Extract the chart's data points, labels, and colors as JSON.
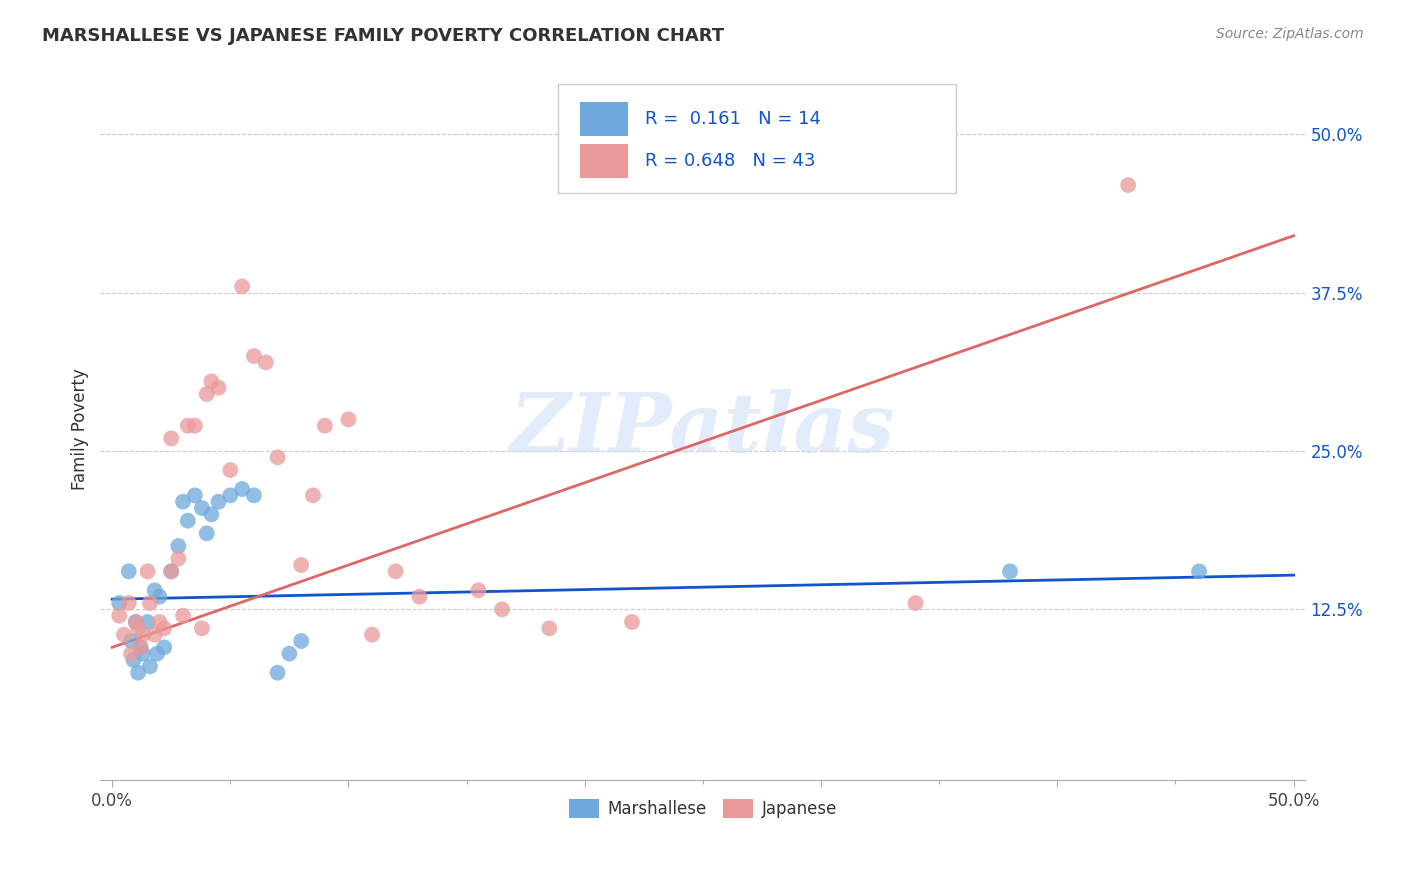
{
  "title": "MARSHALLESE VS JAPANESE FAMILY POVERTY CORRELATION CHART",
  "source": "Source: ZipAtlas.com",
  "ylabel": "Family Poverty",
  "ytick_labels": [
    "12.5%",
    "25.0%",
    "37.5%",
    "50.0%"
  ],
  "ytick_values": [
    0.125,
    0.25,
    0.375,
    0.5
  ],
  "xlim": [
    -0.005,
    0.505
  ],
  "ylim": [
    -0.01,
    0.545
  ],
  "legend_blue_R": "0.161",
  "legend_blue_N": "14",
  "legend_pink_R": "0.648",
  "legend_pink_N": "43",
  "legend_label_blue": "Marshallese",
  "legend_label_pink": "Japanese",
  "blue_color": "#6fa8dc",
  "pink_color": "#ea9999",
  "blue_line_color": "#1155cc",
  "pink_line_color": "#e06666",
  "watermark_color": "#c9daf8",
  "blue_scatter_x": [
    0.003,
    0.007,
    0.008,
    0.009,
    0.01,
    0.011,
    0.012,
    0.013,
    0.015,
    0.016,
    0.018,
    0.019,
    0.02,
    0.022,
    0.025,
    0.028,
    0.03,
    0.032,
    0.035,
    0.038,
    0.04,
    0.042,
    0.045,
    0.05,
    0.055,
    0.06,
    0.07,
    0.075,
    0.08,
    0.38,
    0.46
  ],
  "blue_scatter_y": [
    0.13,
    0.155,
    0.1,
    0.085,
    0.115,
    0.075,
    0.095,
    0.09,
    0.115,
    0.08,
    0.14,
    0.09,
    0.135,
    0.095,
    0.155,
    0.175,
    0.21,
    0.195,
    0.215,
    0.205,
    0.185,
    0.2,
    0.21,
    0.215,
    0.22,
    0.215,
    0.075,
    0.09,
    0.1,
    0.155,
    0.155
  ],
  "pink_scatter_x": [
    0.003,
    0.005,
    0.007,
    0.008,
    0.01,
    0.011,
    0.012,
    0.013,
    0.015,
    0.016,
    0.018,
    0.02,
    0.022,
    0.025,
    0.025,
    0.028,
    0.03,
    0.032,
    0.035,
    0.038,
    0.04,
    0.042,
    0.045,
    0.05,
    0.055,
    0.06,
    0.065,
    0.07,
    0.08,
    0.085,
    0.09,
    0.1,
    0.11,
    0.12,
    0.13,
    0.155,
    0.165,
    0.185,
    0.22,
    0.34,
    0.43
  ],
  "pink_scatter_y": [
    0.12,
    0.105,
    0.13,
    0.09,
    0.115,
    0.11,
    0.095,
    0.105,
    0.155,
    0.13,
    0.105,
    0.115,
    0.11,
    0.155,
    0.26,
    0.165,
    0.12,
    0.27,
    0.27,
    0.11,
    0.295,
    0.305,
    0.3,
    0.235,
    0.38,
    0.325,
    0.32,
    0.245,
    0.16,
    0.215,
    0.27,
    0.275,
    0.105,
    0.155,
    0.135,
    0.14,
    0.125,
    0.11,
    0.115,
    0.13,
    0.46
  ],
  "blue_line_x": [
    0.0,
    0.5
  ],
  "blue_line_y_start": 0.133,
  "blue_line_y_end": 0.152,
  "pink_line_x": [
    0.0,
    0.5
  ],
  "pink_line_y_start": 0.095,
  "pink_line_y_end": 0.42
}
